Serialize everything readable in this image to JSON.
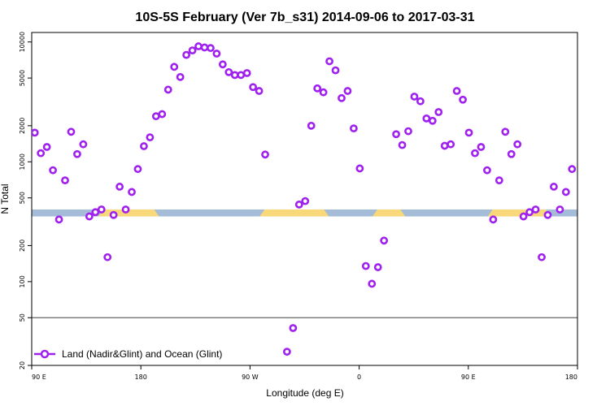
{
  "chart_data": {
    "type": "scatter",
    "title": "10S-5S February (Ver 7b_s31)   2014-09-06 to 2017-03-31",
    "xlabel": "Longitude (deg E)",
    "ylabel": "N Total",
    "xlim": [
      90,
      540
    ],
    "ylim": [
      20,
      12000
    ],
    "y_scale": "log",
    "x_ticks": [
      {
        "value": 90,
        "label": "90 E"
      },
      {
        "value": 180,
        "label": "180"
      },
      {
        "value": 270,
        "label": "90 W"
      },
      {
        "value": 360,
        "label": "0"
      },
      {
        "value": 450,
        "label": "90 E"
      },
      {
        "value": 540,
        "label": "180"
      }
    ],
    "y_ticks": [
      {
        "value": 20,
        "label": "20"
      },
      {
        "value": 50,
        "label": "50"
      },
      {
        "value": 100,
        "label": "100"
      },
      {
        "value": 200,
        "label": "200"
      },
      {
        "value": 500,
        "label": "500"
      },
      {
        "value": 1000,
        "label": "1000"
      },
      {
        "value": 2000,
        "label": "2000"
      },
      {
        "value": 5000,
        "label": "5000"
      },
      {
        "value": 10000,
        "label": "10000"
      }
    ],
    "reference_line_y": 50,
    "grid": false,
    "legend_position": "bottom-left",
    "series": [
      {
        "name": "Land (Nadir&Glint) and Ocean (Glint)",
        "color": "#a020f0",
        "points": [
          [
            92.5,
            1750
          ],
          [
            97.5,
            1180
          ],
          [
            102.5,
            1330
          ],
          [
            107.5,
            850
          ],
          [
            112.5,
            330
          ],
          [
            117.5,
            700
          ],
          [
            122.5,
            1780
          ],
          [
            127.5,
            1160
          ],
          [
            132.5,
            1400
          ],
          [
            137.5,
            350
          ],
          [
            142.5,
            380
          ],
          [
            147.5,
            400
          ],
          [
            152.5,
            160
          ],
          [
            157.5,
            360
          ],
          [
            162.5,
            620
          ],
          [
            167.5,
            400
          ],
          [
            172.5,
            560
          ],
          [
            177.5,
            870
          ],
          [
            182.5,
            1350
          ],
          [
            187.5,
            1600
          ],
          [
            192.5,
            2400
          ],
          [
            197.5,
            2500
          ],
          [
            202.5,
            4000
          ],
          [
            207.5,
            6200
          ],
          [
            212.5,
            5100
          ],
          [
            217.5,
            7800
          ],
          [
            222.5,
            8500
          ],
          [
            227.5,
            9200
          ],
          [
            232.5,
            9000
          ],
          [
            237.5,
            8900
          ],
          [
            242.5,
            8000
          ],
          [
            247.5,
            6500
          ],
          [
            252.5,
            5600
          ],
          [
            257.5,
            5300
          ],
          [
            262.5,
            5300
          ],
          [
            267.5,
            5500
          ],
          [
            272.5,
            4200
          ],
          [
            277.5,
            3900
          ],
          [
            282.5,
            1150
          ],
          [
            300.5,
            26
          ],
          [
            305.5,
            41
          ],
          [
            310.5,
            440
          ],
          [
            315.5,
            470
          ],
          [
            320.5,
            2000
          ],
          [
            325.5,
            4100
          ],
          [
            330.5,
            3800
          ],
          [
            335.5,
            6900
          ],
          [
            340.5,
            5800
          ],
          [
            345.5,
            3400
          ],
          [
            350.5,
            3900
          ],
          [
            355.5,
            1900
          ],
          [
            360.5,
            880
          ],
          [
            365.5,
            135
          ],
          [
            370.5,
            96
          ],
          [
            375.5,
            132
          ],
          [
            380.5,
            220
          ],
          [
            390.5,
            1700
          ],
          [
            395.5,
            1380
          ],
          [
            400.5,
            1800
          ],
          [
            405.5,
            3500
          ],
          [
            410.5,
            3200
          ],
          [
            415.5,
            2300
          ],
          [
            420.5,
            2200
          ],
          [
            425.5,
            2600
          ],
          [
            430.5,
            1360
          ],
          [
            435.5,
            1400
          ],
          [
            440.5,
            3900
          ],
          [
            445.5,
            3300
          ],
          [
            450.5,
            1750
          ],
          [
            455.5,
            1180
          ],
          [
            460.5,
            1330
          ],
          [
            465.5,
            850
          ],
          [
            470.5,
            330
          ],
          [
            475.5,
            700
          ],
          [
            480.5,
            1780
          ],
          [
            485.5,
            1160
          ],
          [
            490.5,
            1400
          ],
          [
            495.5,
            350
          ],
          [
            500.5,
            380
          ],
          [
            505.5,
            400
          ],
          [
            510.5,
            160
          ],
          [
            515.5,
            360
          ],
          [
            520.5,
            620
          ],
          [
            525.5,
            400
          ],
          [
            530.5,
            560
          ],
          [
            535.5,
            870
          ]
        ]
      }
    ],
    "background_band": {
      "y_range": [
        350,
        400
      ],
      "ocean_color": "#a5bcd9",
      "land_color": "#f8d878",
      "land_x_ranges": [
        [
          145,
          195
        ],
        [
          278,
          335
        ],
        [
          371,
          398
        ],
        [
          466,
          518
        ]
      ]
    }
  }
}
